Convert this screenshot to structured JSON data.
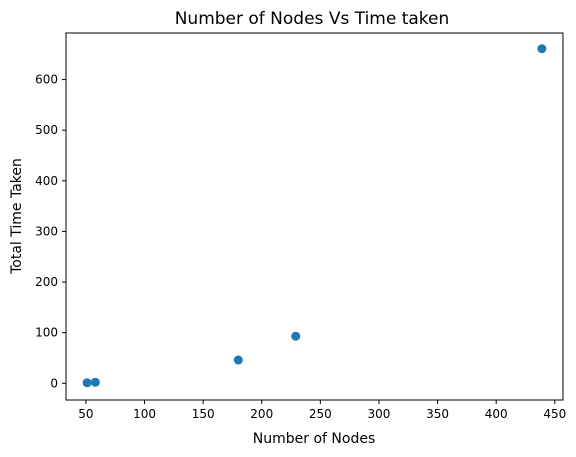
{
  "chart_data": {
    "type": "scatter",
    "title": "Number of Nodes Vs Time taken",
    "xlabel": "Number of Nodes",
    "ylabel": "Total Time Taken",
    "xlim": [
      33,
      457
    ],
    "ylim": [
      -33,
      692
    ],
    "xticks": [
      50,
      100,
      150,
      200,
      250,
      300,
      350,
      400,
      450
    ],
    "yticks": [
      0,
      100,
      200,
      300,
      400,
      500,
      600
    ],
    "grid": false,
    "marker_color": "#1f77b4",
    "points": [
      {
        "x": 51,
        "y": 1
      },
      {
        "x": 58,
        "y": 2
      },
      {
        "x": 180,
        "y": 46
      },
      {
        "x": 229,
        "y": 93
      },
      {
        "x": 439,
        "y": 661
      }
    ]
  }
}
